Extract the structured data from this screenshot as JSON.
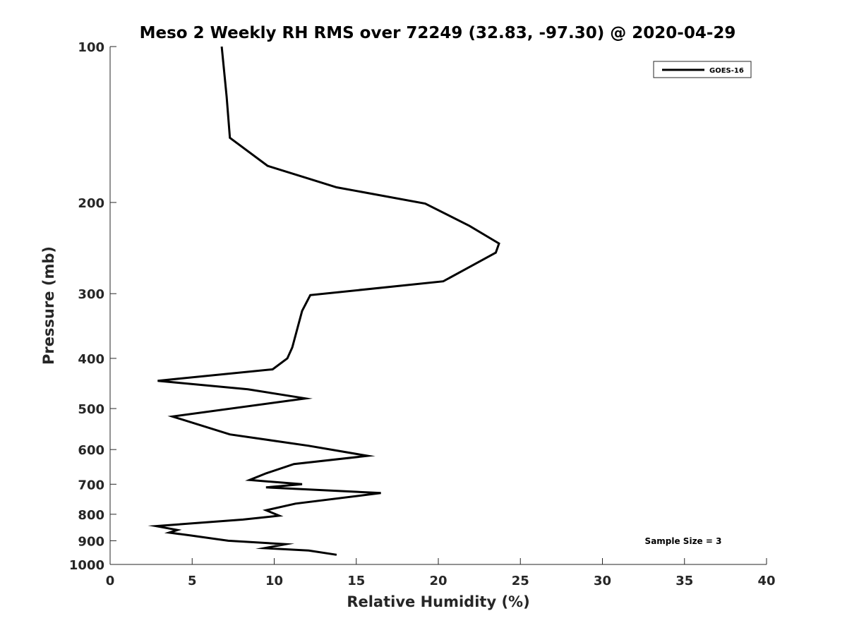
{
  "chart_data": {
    "type": "line",
    "title": "Meso 2 Weekly RH RMS over 72249 (32.83, -97.30) @ 2020-04-29",
    "xlabel": "Relative Humidity (%)",
    "ylabel": "Pressure (mb)",
    "xlim": [
      0,
      40
    ],
    "ylim": [
      100,
      1000
    ],
    "y_scale": "log",
    "y_reversed": true,
    "grid": false,
    "x_ticks": [
      "0",
      "5",
      "10",
      "15",
      "20",
      "25",
      "30",
      "35",
      "40"
    ],
    "y_ticks": [
      "100",
      "200",
      "300",
      "400",
      "500",
      "600",
      "700",
      "800",
      "900",
      "1000"
    ],
    "legend": {
      "position": "top-right",
      "entries": [
        "GOES-16"
      ]
    },
    "annotation": "Sample Size = 3",
    "series": [
      {
        "name": "GOES-16",
        "color": "#000000",
        "points": [
          [
            6.8,
            100
          ],
          [
            7.1,
            125
          ],
          [
            7.3,
            150
          ],
          [
            9.6,
            170
          ],
          [
            13.8,
            187
          ],
          [
            19.2,
            201
          ],
          [
            21.9,
            222
          ],
          [
            23.7,
            240
          ],
          [
            23.5,
            250
          ],
          [
            20.3,
            284
          ],
          [
            12.2,
            302
          ],
          [
            11.7,
            324
          ],
          [
            11.1,
            381
          ],
          [
            10.8,
            400
          ],
          [
            9.9,
            420
          ],
          [
            2.9,
            442
          ],
          [
            8.4,
            459
          ],
          [
            11.9,
            478
          ],
          [
            3.8,
            518
          ],
          [
            7.3,
            561
          ],
          [
            12.1,
            590
          ],
          [
            15.7,
            617
          ],
          [
            11.2,
            640
          ],
          [
            9.5,
            667
          ],
          [
            8.5,
            687
          ],
          [
            11.7,
            700
          ],
          [
            9.5,
            710
          ],
          [
            16.5,
            728
          ],
          [
            11.3,
            763
          ],
          [
            9.5,
            786
          ],
          [
            10.3,
            805
          ],
          [
            8.1,
            819
          ],
          [
            2.8,
            843
          ],
          [
            4.1,
            858
          ],
          [
            3.6,
            868
          ],
          [
            4.9,
            879
          ],
          [
            7.2,
            900
          ],
          [
            10.7,
            914
          ],
          [
            9.4,
            930
          ],
          [
            12.1,
            940
          ],
          [
            13.8,
            958
          ]
        ]
      }
    ]
  }
}
